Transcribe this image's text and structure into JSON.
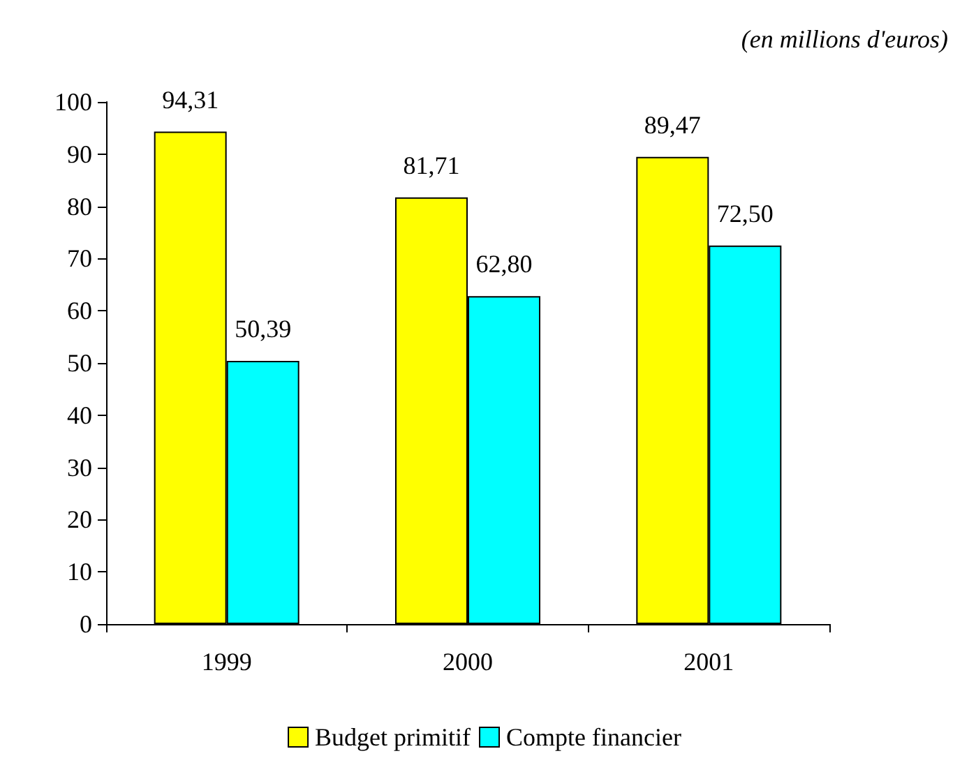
{
  "chart_data": {
    "type": "bar",
    "annotations": [
      "(en millions d'euros)"
    ],
    "categories": [
      "1999",
      "2000",
      "2001"
    ],
    "series": [
      {
        "name": "Budget primitif",
        "color": "#ffff00",
        "values": [
          94.31,
          81.71,
          89.47
        ],
        "value_labels": [
          "94,31",
          "81,71",
          "89,47"
        ]
      },
      {
        "name": "Compte financier",
        "color": "#00ffff",
        "values": [
          50.39,
          62.8,
          72.5
        ],
        "value_labels": [
          "50,39",
          "62,80",
          "72,50"
        ]
      }
    ],
    "ylim": [
      0,
      100
    ],
    "yticks": [
      0,
      10,
      20,
      30,
      40,
      50,
      60,
      70,
      80,
      90,
      100
    ],
    "grid": false,
    "legend": "bottom"
  }
}
